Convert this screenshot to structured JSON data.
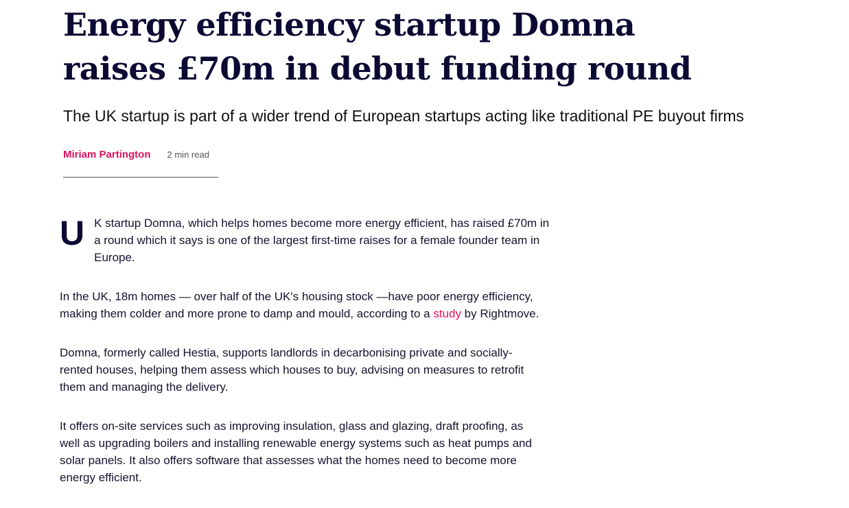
{
  "article": {
    "title_lines": [
      "Energy efficiency startup Domna",
      "raises £70m in debut funding round"
    ],
    "subtitle": "The UK startup is part of a wider trend of European startups acting like traditional PE buyout firms",
    "author": "Miriam Partington",
    "read_time": "2 min read",
    "colors": {
      "accent": "#e0115f",
      "headline": "#0b0a33"
    },
    "p1": {
      "drop_cap": "U",
      "lines": [
        "K startup Domna, which helps homes become more energy efficient, has raised £70m in",
        "a round which it says is one of the largest first-time raises for a female founder team in",
        "Europe."
      ]
    },
    "p2": {
      "line1": "In the UK, 18m homes — over half of the UK's housing stock —have poor energy efficiency,",
      "line2_before": "making them colder and more prone to damp and mould, according to a ",
      "link": "study",
      "line2_after": " by Rightmove."
    },
    "p3": {
      "lines": [
        "Domna, formerly called Hestia, supports landlords in decarbonising private and socially-",
        "rented houses, helping them assess which houses to buy, advising on measures to retrofit",
        "them and managing the delivery."
      ]
    },
    "p4": {
      "lines": [
        "It offers on-site services such as improving insulation, glass and glazing, draft proofing, as",
        "well as upgrading boilers and installing renewable energy systems such as heat pumps and",
        "solar panels. It also offers software that assesses what the homes need to become more",
        "energy efficient."
      ]
    }
  }
}
